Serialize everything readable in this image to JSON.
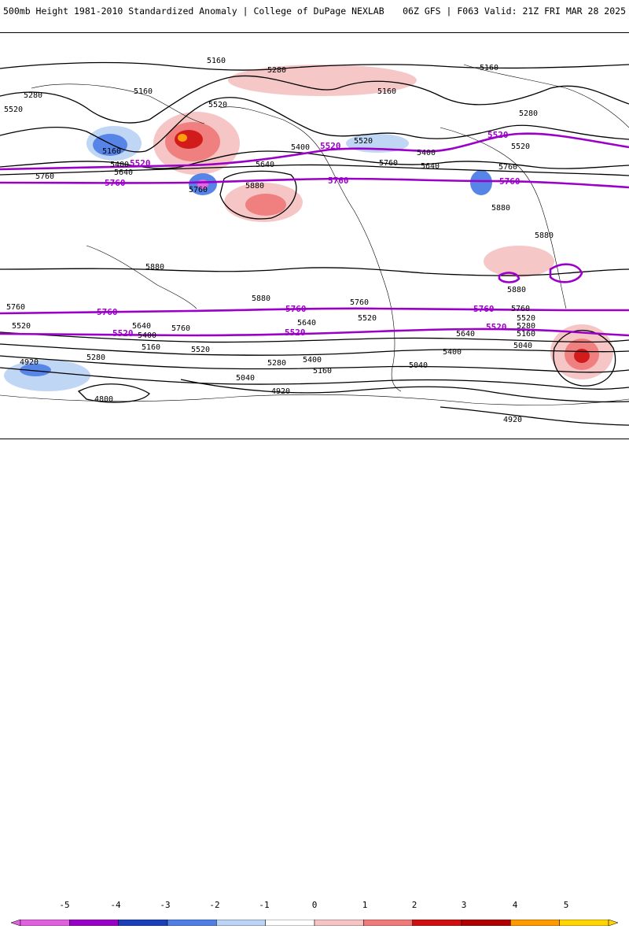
{
  "header": {
    "left_title": "500mb Height 1981-2010 Standardized Anomaly | College of DuPage NEXLAB",
    "right_title": "06Z GFS | F063 Valid: 21Z FRI MAR 28 2025"
  },
  "contours": {
    "black_labels": [
      "5160",
      "5280",
      "5520",
      "5160",
      "5400",
      "5640",
      "5760",
      "5880",
      "4920",
      "4800",
      "5040",
      "5280",
      "5400",
      "5520",
      "5640",
      "5760",
      "5880"
    ],
    "purple_labels": [
      "5520",
      "5760"
    ]
  },
  "colorbar": {
    "ticks": [
      "-5",
      "-4",
      "-3",
      "-2",
      "-1",
      "0",
      "1",
      "2",
      "3",
      "4",
      "5"
    ],
    "colors": [
      "#e060e0",
      "#9b00c8",
      "#1a3fb8",
      "#4f7fe6",
      "#bcd4f5",
      "#ffffff",
      "#f6c4c4",
      "#f07a7a",
      "#d01010",
      "#b00000",
      "#ff9a00",
      "#ffd400"
    ]
  }
}
